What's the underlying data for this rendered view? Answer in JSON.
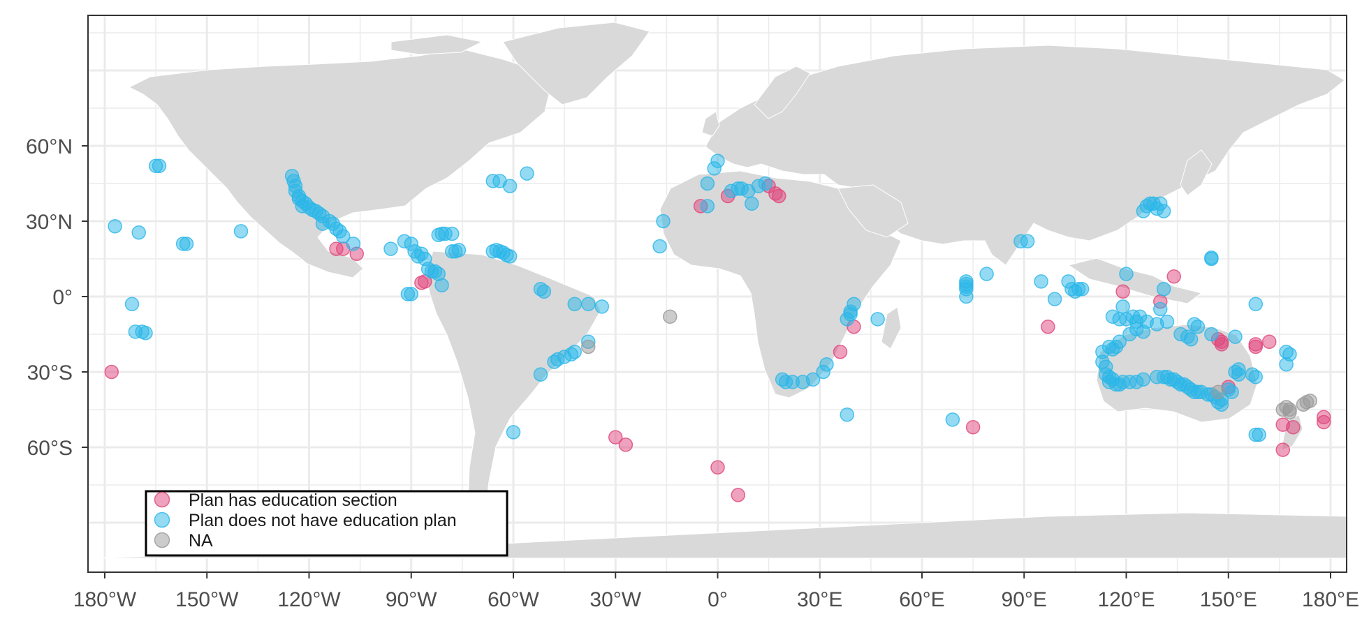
{
  "chart_data": {
    "type": "scatter",
    "projection": "equirectangular",
    "basemap": "world countries, light grey land on white background",
    "xlim": [
      -180,
      180
    ],
    "ylim": [
      -90,
      90
    ],
    "x_ticks": [
      {
        "value": -180,
        "label": "180°W"
      },
      {
        "value": -150,
        "label": "150°W"
      },
      {
        "value": -120,
        "label": "120°W"
      },
      {
        "value": -90,
        "label": "90°W"
      },
      {
        "value": -60,
        "label": "60°W"
      },
      {
        "value": -30,
        "label": "30°W"
      },
      {
        "value": 0,
        "label": "0°"
      },
      {
        "value": 30,
        "label": "30°E"
      },
      {
        "value": 60,
        "label": "60°E"
      },
      {
        "value": 90,
        "label": "90°E"
      },
      {
        "value": 120,
        "label": "120°E"
      },
      {
        "value": 150,
        "label": "150°E"
      },
      {
        "value": 180,
        "label": "180°E"
      }
    ],
    "y_ticks": [
      {
        "value": 60,
        "label": "60°N"
      },
      {
        "value": 30,
        "label": "30°N"
      },
      {
        "value": 0,
        "label": "0°"
      },
      {
        "value": -30,
        "label": "30°S"
      },
      {
        "value": -60,
        "label": "60°S"
      }
    ],
    "grid": true,
    "legend_position": "bottom-left",
    "colors": {
      "land": "#d9d9d9",
      "grid": "#ebebeb",
      "border": "#333333"
    },
    "series": [
      {
        "name": "Plan has education section",
        "color": "#e0457b",
        "points": [
          [
            -178,
            -30
          ],
          [
            -112,
            19
          ],
          [
            -110,
            19
          ],
          [
            -106,
            17
          ],
          [
            -87,
            5.5
          ],
          [
            -86,
            6
          ],
          [
            -5,
            36
          ],
          [
            3,
            40
          ],
          [
            15,
            44
          ],
          [
            17,
            41
          ],
          [
            18,
            40
          ],
          [
            36,
            -22
          ],
          [
            40,
            -12
          ],
          [
            -30,
            -56
          ],
          [
            -27,
            -59
          ],
          [
            0,
            -68
          ],
          [
            6,
            -79
          ],
          [
            75,
            -52
          ],
          [
            97,
            -12
          ],
          [
            119,
            2
          ],
          [
            130,
            -2
          ],
          [
            134,
            8
          ],
          [
            147,
            -17
          ],
          [
            148,
            -18
          ],
          [
            148,
            -19
          ],
          [
            150,
            -36
          ],
          [
            158,
            -19
          ],
          [
            158,
            -20
          ],
          [
            162,
            -18
          ],
          [
            166,
            -51
          ],
          [
            166,
            -61
          ],
          [
            169,
            -52
          ],
          [
            178,
            -48
          ],
          [
            178,
            -50
          ]
        ]
      },
      {
        "name": "Plan does not have education plan",
        "color": "#29b6e8",
        "points": [
          [
            -177,
            28
          ],
          [
            -170,
            25.5
          ],
          [
            -165,
            52
          ],
          [
            -164,
            52
          ],
          [
            -172,
            -3
          ],
          [
            -171,
            -14
          ],
          [
            -169,
            -14
          ],
          [
            -168,
            -14.5
          ],
          [
            -157,
            21
          ],
          [
            -156,
            21
          ],
          [
            -140,
            26
          ],
          [
            -125,
            48
          ],
          [
            -124.5,
            46
          ],
          [
            -124,
            44
          ],
          [
            -124,
            42
          ],
          [
            -123,
            40
          ],
          [
            -122,
            38
          ],
          [
            -121,
            37
          ],
          [
            -120,
            35.5
          ],
          [
            -119,
            34.5
          ],
          [
            -118,
            34
          ],
          [
            -117,
            33
          ],
          [
            -116,
            32
          ],
          [
            -114,
            30
          ],
          [
            -113,
            29
          ],
          [
            -112,
            27
          ],
          [
            -111,
            26
          ],
          [
            -110,
            24
          ],
          [
            -107,
            21
          ],
          [
            -116,
            29
          ],
          [
            -123,
            39
          ],
          [
            -122,
            36
          ],
          [
            -96,
            19
          ],
          [
            -92,
            22
          ],
          [
            -90,
            21
          ],
          [
            -89,
            18
          ],
          [
            -88,
            16
          ],
          [
            -87,
            17
          ],
          [
            -86,
            15
          ],
          [
            -85,
            11
          ],
          [
            -84,
            10
          ],
          [
            -83,
            10
          ],
          [
            -82,
            9
          ],
          [
            -81,
            4.5
          ],
          [
            -80,
            25
          ],
          [
            -81,
            25
          ],
          [
            -82,
            24.5
          ],
          [
            -78,
            25
          ],
          [
            -77,
            18
          ],
          [
            -76,
            18.5
          ],
          [
            -78,
            18
          ],
          [
            -66,
            18
          ],
          [
            -65,
            18.5
          ],
          [
            -64,
            18
          ],
          [
            -63,
            17.5
          ],
          [
            -62,
            16.5
          ],
          [
            -61,
            16
          ],
          [
            -91,
            1
          ],
          [
            -90,
            1
          ],
          [
            -66,
            46
          ],
          [
            -64,
            46
          ],
          [
            -61,
            44
          ],
          [
            -56,
            49
          ],
          [
            -52,
            3
          ],
          [
            -51,
            2
          ],
          [
            -42,
            -3
          ],
          [
            -38,
            -3
          ],
          [
            -34,
            -4
          ],
          [
            -48,
            -26
          ],
          [
            -47,
            -25
          ],
          [
            -45,
            -24
          ],
          [
            -43,
            -23
          ],
          [
            -42,
            -22
          ],
          [
            -38,
            -18
          ],
          [
            -52,
            -31
          ],
          [
            -60,
            -54
          ],
          [
            -16,
            30
          ],
          [
            -17,
            20
          ],
          [
            -1,
            51
          ],
          [
            0,
            54
          ],
          [
            4,
            42
          ],
          [
            6,
            43
          ],
          [
            7,
            43
          ],
          [
            9,
            42
          ],
          [
            10,
            37
          ],
          [
            12,
            44
          ],
          [
            14,
            45
          ],
          [
            -3,
            36
          ],
          [
            -3,
            45
          ],
          [
            40,
            -3
          ],
          [
            39,
            -6
          ],
          [
            39,
            -7
          ],
          [
            38,
            -9
          ],
          [
            47,
            -9
          ],
          [
            31,
            -30
          ],
          [
            32,
            -27
          ],
          [
            28,
            -33
          ],
          [
            25,
            -34
          ],
          [
            22,
            -34
          ],
          [
            20,
            -34
          ],
          [
            19,
            -33
          ],
          [
            38,
            -47
          ],
          [
            69,
            -49
          ],
          [
            73,
            6
          ],
          [
            73,
            5
          ],
          [
            73,
            4
          ],
          [
            73,
            3
          ],
          [
            73,
            0
          ],
          [
            79,
            9
          ],
          [
            89,
            22
          ],
          [
            91,
            22
          ],
          [
            95,
            6
          ],
          [
            99,
            -1
          ],
          [
            104,
            3
          ],
          [
            105,
            2
          ],
          [
            106,
            3
          ],
          [
            107,
            3
          ],
          [
            103,
            6
          ],
          [
            120,
            9
          ],
          [
            119,
            -4
          ],
          [
            116,
            -8
          ],
          [
            118,
            -9
          ],
          [
            120,
            -9
          ],
          [
            122,
            -8
          ],
          [
            123,
            -10
          ],
          [
            124,
            -8
          ],
          [
            126,
            -10
          ],
          [
            129,
            -11
          ],
          [
            130,
            -5
          ],
          [
            131,
            3
          ],
          [
            132,
            -10
          ],
          [
            136,
            -15
          ],
          [
            140,
            -11
          ],
          [
            141,
            -12
          ],
          [
            145,
            -15
          ],
          [
            152,
            -16
          ],
          [
            158,
            -3
          ],
          [
            145,
            15
          ],
          [
            145,
            15.5
          ],
          [
            125,
            34
          ],
          [
            126,
            36
          ],
          [
            127,
            37
          ],
          [
            128,
            37
          ],
          [
            129,
            35
          ],
          [
            130,
            37
          ],
          [
            131,
            34
          ],
          [
            113,
            -22
          ],
          [
            113,
            -26
          ],
          [
            114,
            -28
          ],
          [
            114,
            -31
          ],
          [
            115,
            -32
          ],
          [
            115,
            -34
          ],
          [
            116,
            -33
          ],
          [
            117,
            -35
          ],
          [
            118,
            -35
          ],
          [
            119,
            -34
          ],
          [
            121,
            -34
          ],
          [
            123,
            -34
          ],
          [
            125,
            -33
          ],
          [
            129,
            -32
          ],
          [
            131,
            -32
          ],
          [
            132,
            -32
          ],
          [
            133,
            -33
          ],
          [
            134,
            -33
          ],
          [
            135,
            -34
          ],
          [
            136,
            -35
          ],
          [
            137,
            -35
          ],
          [
            138,
            -36
          ],
          [
            139,
            -37
          ],
          [
            140,
            -38
          ],
          [
            141,
            -38
          ],
          [
            142,
            -38
          ],
          [
            144,
            -39
          ],
          [
            145,
            -39
          ],
          [
            146,
            -40
          ],
          [
            147,
            -42
          ],
          [
            148,
            -43
          ],
          [
            148,
            -41
          ],
          [
            150,
            -37
          ],
          [
            151,
            -38
          ],
          [
            152,
            -30
          ],
          [
            153,
            -29
          ],
          [
            153,
            -31
          ],
          [
            157,
            -31
          ],
          [
            158,
            -32
          ],
          [
            115,
            -20
          ],
          [
            116,
            -21
          ],
          [
            117,
            -20
          ],
          [
            118,
            -18
          ],
          [
            121,
            -15
          ],
          [
            123,
            -13
          ],
          [
            125,
            -14
          ],
          [
            138,
            -16
          ],
          [
            139,
            -17
          ],
          [
            167,
            -22
          ],
          [
            168,
            -23
          ],
          [
            167,
            -27
          ],
          [
            158,
            -55
          ],
          [
            159,
            -55
          ]
        ]
      },
      {
        "name": "NA",
        "color": "#999999",
        "points": [
          [
            -14,
            -8
          ],
          [
            -38,
            -20
          ],
          [
            147,
            -38
          ],
          [
            166,
            -45
          ],
          [
            167,
            -44
          ],
          [
            168,
            -46
          ],
          [
            168,
            -45
          ],
          [
            172,
            -43
          ],
          [
            173,
            -42
          ],
          [
            174,
            -41.5
          ]
        ]
      }
    ]
  }
}
